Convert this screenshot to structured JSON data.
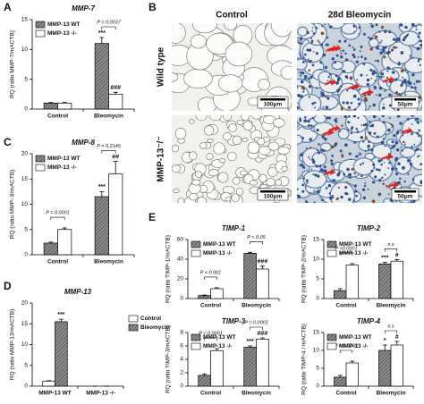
{
  "panel_labels": [
    "A",
    "B",
    "C",
    "D",
    "E"
  ],
  "micrographs": {
    "columns": [
      "Control",
      "28d Bleomycin"
    ],
    "rows": [
      "Wild type",
      "MMP-13⁻/⁻"
    ],
    "scale_bars": [
      "100μm",
      "50μm",
      "100μm",
      "50μm"
    ]
  },
  "chart_data": [
    {
      "type": "bar",
      "title": "MMP-7",
      "ylabel": "RQ (ratio MMP-7/mACTB)",
      "categories": [
        "Control",
        "Bleomycin"
      ],
      "ylim": [
        0,
        15
      ],
      "yticks": [
        0,
        5,
        10,
        15
      ],
      "legend": "upper left",
      "series": [
        {
          "name": "MMP-13 WT",
          "color": "#8c8c8c",
          "hatch": true,
          "values": [
            1,
            11
          ],
          "errors": [
            0.1,
            1
          ],
          "significance": [
            null,
            "***"
          ]
        },
        {
          "name": "MMP-13 -/-",
          "color": "#ffffff",
          "hatch": false,
          "values": [
            1,
            2.5
          ],
          "errors": [
            0.1,
            0.3
          ],
          "significance": [
            null,
            "###"
          ]
        }
      ],
      "comparisons": [
        {
          "category": 1,
          "label": "P = 0.0037"
        }
      ]
    },
    {
      "type": "bar",
      "title": "MMP-8",
      "ylabel": "RQ (ratio MMP- 8/mACTB)",
      "categories": [
        "Control",
        "Bleomycin"
      ],
      "ylim": [
        0,
        20
      ],
      "yticks": [
        0,
        5,
        10,
        15,
        20
      ],
      "legend": "upper left",
      "series": [
        {
          "name": "MMP-13 WT",
          "color": "#8c8c8c",
          "hatch": true,
          "values": [
            2.3,
            11.5
          ],
          "errors": [
            0.2,
            1
          ],
          "significance": [
            null,
            "***"
          ]
        },
        {
          "name": "MMP-13 -/-",
          "color": "#ffffff",
          "hatch": false,
          "values": [
            5,
            16
          ],
          "errors": [
            0.3,
            2.5
          ],
          "significance": [
            null,
            "##"
          ]
        }
      ],
      "comparisons": [
        {
          "category": 0,
          "label": "P = 0.0001"
        },
        {
          "category": 1,
          "label": "P = 0.2145"
        }
      ]
    },
    {
      "type": "bar",
      "title": "MMP-13",
      "ylabel": "RQ (ratio MMP-13/mACTB)",
      "categories": [
        "MMP-13 WT",
        "MMP-13 -/-"
      ],
      "ylim": [
        0,
        20
      ],
      "yticks": [
        0,
        5,
        10,
        15,
        20
      ],
      "legend": "right",
      "series": [
        {
          "name": "Control",
          "color": "#ffffff",
          "hatch": false,
          "values": [
            1.2,
            0
          ],
          "errors": [
            0.1,
            0
          ],
          "significance": [
            null,
            null
          ]
        },
        {
          "name": "Bleomycin",
          "color": "#8c8c8c",
          "hatch": true,
          "values": [
            15.5,
            0
          ],
          "errors": [
            0.6,
            0
          ],
          "significance": [
            "***",
            null
          ]
        }
      ],
      "comparisons": []
    },
    {
      "type": "bar",
      "title": "TIMP-1",
      "ylabel": "RQ (ratio TIMP-1/mACTB)",
      "categories": [
        "Control",
        "Bleomycin"
      ],
      "ylim": [
        0,
        60
      ],
      "yticks": [
        0,
        20,
        40,
        60
      ],
      "legend": "upper left",
      "series": [
        {
          "name": "MMP-13 WT",
          "color": "#8c8c8c",
          "hatch": true,
          "values": [
            3,
            46
          ],
          "errors": [
            0.5,
            1
          ],
          "significance": [
            null,
            null
          ]
        },
        {
          "name": "MMP-13 -/-",
          "color": "#ffffff",
          "hatch": false,
          "values": [
            10,
            30
          ],
          "errors": [
            1,
            3
          ],
          "significance": [
            null,
            "###"
          ]
        }
      ],
      "comparisons": [
        {
          "category": 0,
          "label": "P < 0.001"
        },
        {
          "category": 1,
          "label": "P < 0.05"
        }
      ]
    },
    {
      "type": "bar",
      "title": "TIMP-2",
      "ylabel": "RQ (ratio TIMP-2/mACTB)",
      "categories": [
        "Control",
        "Bleomycin"
      ],
      "ylim": [
        0,
        15
      ],
      "yticks": [
        0,
        5,
        10,
        15
      ],
      "legend": "upper left",
      "series": [
        {
          "name": "MMP-13 WT",
          "color": "#8c8c8c",
          "hatch": true,
          "values": [
            2,
            8.8
          ],
          "errors": [
            0.5,
            0.4
          ],
          "significance": [
            null,
            "***"
          ]
        },
        {
          "name": "MMP-13 -/-",
          "color": "#ffffff",
          "hatch": false,
          "values": [
            8.5,
            9.5
          ],
          "errors": [
            0.4,
            0.4
          ],
          "significance": [
            null,
            "#"
          ]
        }
      ],
      "comparisons": [
        {
          "category": 0,
          "label": "P <0.0001"
        },
        {
          "category": 1,
          "label": "n.s"
        }
      ]
    },
    {
      "type": "bar",
      "title": "TIMP-3",
      "ylabel": "RQ (ratio TIMP-3/mACTB)",
      "categories": [
        "Control",
        "Bleomycin"
      ],
      "ylim": [
        0,
        8
      ],
      "yticks": [
        0,
        2,
        4,
        6,
        8
      ],
      "legend": "upper left",
      "series": [
        {
          "name": "MMP-13 WT",
          "color": "#8c8c8c",
          "hatch": true,
          "values": [
            1.6,
            5.8
          ],
          "errors": [
            0.2,
            0.2
          ],
          "significance": [
            null,
            "***"
          ]
        },
        {
          "name": "MMP-13 -/-",
          "color": "#ffffff",
          "hatch": false,
          "values": [
            5.3,
            7
          ],
          "errors": [
            0.3,
            0.2
          ],
          "significance": [
            null,
            "###"
          ]
        }
      ],
      "comparisons": [
        {
          "category": 0,
          "label": "P < 0.0001"
        },
        {
          "category": 1,
          "label": "P = 0.0001"
        }
      ]
    },
    {
      "type": "bar",
      "title": "TIMP-4",
      "ylabel": "RQ (ratio TIMP-4 / mACTB)",
      "categories": [
        "Control",
        "Bleomycin"
      ],
      "ylim": [
        0,
        15
      ],
      "yticks": [
        0,
        5,
        10,
        15
      ],
      "legend": "upper left",
      "series": [
        {
          "name": "MMP-13 WT",
          "color": "#8c8c8c",
          "hatch": true,
          "values": [
            2.5,
            10
          ],
          "errors": [
            0.5,
            1.5
          ],
          "significance": [
            null,
            "*"
          ]
        },
        {
          "name": "MMP-13 -/-",
          "color": "#ffffff",
          "hatch": false,
          "values": [
            6.5,
            11.5
          ],
          "errors": [
            0.5,
            1
          ],
          "significance": [
            null,
            "#"
          ]
        }
      ],
      "comparisons": [
        {
          "category": 0,
          "label": "P < 0.0001"
        },
        {
          "category": 1,
          "label": "n.s"
        }
      ]
    }
  ]
}
